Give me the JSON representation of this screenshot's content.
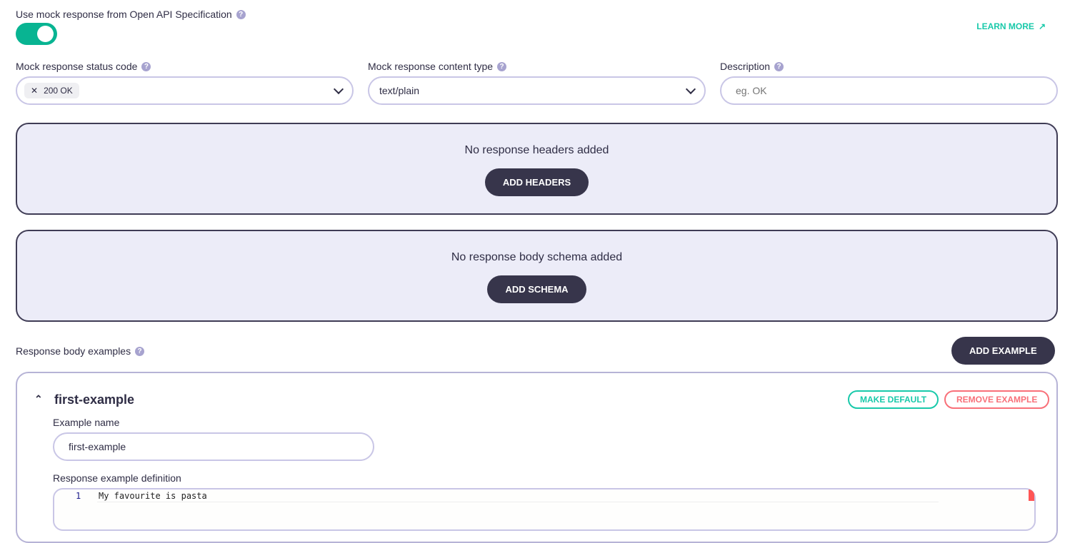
{
  "mock": {
    "label": "Use mock response from Open API Specification",
    "enabled": true,
    "learn_more": "LEARN MORE"
  },
  "status": {
    "label": "Mock response status code",
    "chip": "200 OK"
  },
  "content_type": {
    "label": "Mock response content type",
    "value": "text/plain"
  },
  "description": {
    "label": "Description",
    "placeholder": "eg. OK"
  },
  "headers": {
    "empty": "No response headers added",
    "button": "ADD HEADERS"
  },
  "schema": {
    "empty": "No response body schema added",
    "button": "ADD SCHEMA"
  },
  "examples": {
    "label": "Response body examples",
    "add": "ADD EXAMPLE",
    "item": {
      "title": "first-example",
      "make_default": "MAKE DEFAULT",
      "remove": "REMOVE EXAMPLE",
      "name_label": "Example name",
      "name_value": "first-example",
      "def_label": "Response example definition",
      "line_no": "1",
      "code": "My favourite is pasta"
    }
  }
}
